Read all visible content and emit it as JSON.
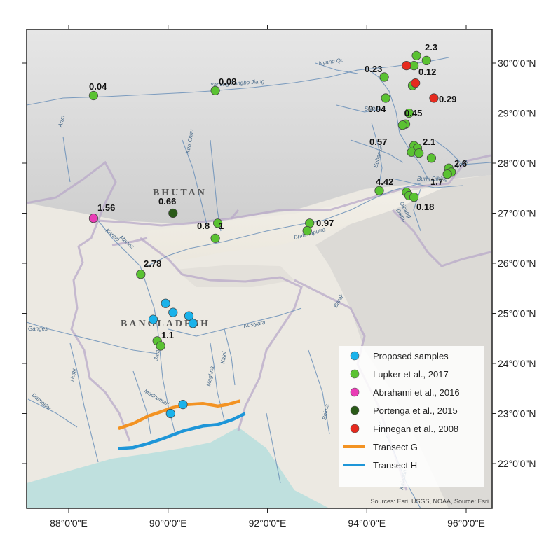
{
  "map": {
    "x_ticks": [
      "88°0'0\"E",
      "90°0'0\"E",
      "92°0'0\"E",
      "94°0'0\"E",
      "96°0'0\"E"
    ],
    "y_ticks": [
      "30°0'0\"N",
      "29°0'0\"N",
      "28°0'0\"N",
      "27°0'0\"N",
      "26°0'0\"N",
      "25°0'0\"N",
      "24°0'0\"N",
      "23°0'0\"N",
      "22°0'0\"N"
    ],
    "countries": [
      "BHUTAN",
      "BANGLADESH"
    ],
    "rivers": [
      "Nyang Qu",
      "Yarlung Zangbo Jiang",
      "Siyom",
      "Subansiri",
      "Lohit",
      "Burhi Dihing",
      "Dibang",
      "Arun",
      "Kuri Chhu",
      "Manas",
      "Brahmaputra",
      "Dikhu",
      "Barak",
      "Kusiyara",
      "Kalni",
      "Meghna",
      "Ganges",
      "Jamuna",
      "Madhumati",
      "Hugli",
      "Damodar",
      "Kaladan",
      "Bhima",
      "Karato"
    ],
    "value_labels": [
      "2.3",
      "0.23",
      "0.12",
      "0.04",
      "0.08",
      "0.04",
      "0.29",
      "0.45",
      "0.57",
      "2.1",
      "2.6",
      "4.42",
      "1.7",
      "0.18",
      "1.56",
      "0.66",
      "0.8",
      "1",
      "0.97",
      "2.78",
      "1.1"
    ],
    "attribution": "Sources: Esri, USGS, NOAA, Source: Esri"
  },
  "legend": {
    "items": [
      {
        "label": "Proposed samples",
        "color": "#1ab2ea",
        "symbol": "circle"
      },
      {
        "label": "Lupker et al., 2017",
        "color": "#5ac232",
        "symbol": "circle"
      },
      {
        "label": "Abrahami et al., 2016",
        "color": "#e93db5",
        "symbol": "circle"
      },
      {
        "label": "Portenga et al., 2015",
        "color": "#2a5a18",
        "symbol": "circle"
      },
      {
        "label": "Finnegan et al., 2008",
        "color": "#e62a1e",
        "symbol": "circle"
      },
      {
        "label": "Transect G",
        "color": "#f39323",
        "symbol": "line"
      },
      {
        "label": "Transect H",
        "color": "#1e96d8",
        "symbol": "line"
      }
    ]
  },
  "points": [
    {
      "dataset": "Lupker et al., 2017",
      "lon": 88.5,
      "lat": 29.35
    },
    {
      "dataset": "Lupker et al., 2017",
      "lon": 90.95,
      "lat": 29.45
    },
    {
      "dataset": "Lupker et al., 2017",
      "lon": 95.0,
      "lat": 30.15
    },
    {
      "dataset": "Lupker et al., 2017",
      "lon": 95.2,
      "lat": 30.05
    },
    {
      "dataset": "Lupker et al., 2017",
      "lon": 94.95,
      "lat": 29.95
    },
    {
      "dataset": "Lupker et al., 2017",
      "lon": 94.35,
      "lat": 29.72
    },
    {
      "dataset": "Lupker et al., 2017",
      "lon": 94.92,
      "lat": 29.55
    },
    {
      "dataset": "Lupker et al., 2017",
      "lon": 94.38,
      "lat": 29.3
    },
    {
      "dataset": "Lupker et al., 2017",
      "lon": 94.85,
      "lat": 29.0
    },
    {
      "dataset": "Lupker et al., 2017",
      "lon": 94.78,
      "lat": 28.78
    },
    {
      "dataset": "Lupker et al., 2017",
      "lon": 94.72,
      "lat": 28.76
    },
    {
      "dataset": "Lupker et al., 2017",
      "lon": 94.95,
      "lat": 28.35
    },
    {
      "dataset": "Lupker et al., 2017",
      "lon": 95.02,
      "lat": 28.3
    },
    {
      "dataset": "Lupker et al., 2017",
      "lon": 94.9,
      "lat": 28.22
    },
    {
      "dataset": "Lupker et al., 2017",
      "lon": 95.05,
      "lat": 28.2
    },
    {
      "dataset": "Lupker et al., 2017",
      "lon": 95.3,
      "lat": 28.1
    },
    {
      "dataset": "Lupker et al., 2017",
      "lon": 95.65,
      "lat": 27.9
    },
    {
      "dataset": "Lupker et al., 2017",
      "lon": 95.7,
      "lat": 27.82
    },
    {
      "dataset": "Lupker et al., 2017",
      "lon": 95.62,
      "lat": 27.78
    },
    {
      "dataset": "Lupker et al., 2017",
      "lon": 94.25,
      "lat": 27.45
    },
    {
      "dataset": "Lupker et al., 2017",
      "lon": 94.8,
      "lat": 27.42
    },
    {
      "dataset": "Lupker et al., 2017",
      "lon": 94.85,
      "lat": 27.35
    },
    {
      "dataset": "Lupker et al., 2017",
      "lon": 94.95,
      "lat": 27.32
    },
    {
      "dataset": "Lupker et al., 2017",
      "lon": 91.0,
      "lat": 26.8
    },
    {
      "dataset": "Lupker et al., 2017",
      "lon": 90.95,
      "lat": 26.5
    },
    {
      "dataset": "Lupker et al., 2017",
      "lon": 92.85,
      "lat": 26.8
    },
    {
      "dataset": "Lupker et al., 2017",
      "lon": 92.8,
      "lat": 26.65
    },
    {
      "dataset": "Lupker et al., 2017",
      "lon": 89.45,
      "lat": 25.78
    },
    {
      "dataset": "Lupker et al., 2017",
      "lon": 89.78,
      "lat": 24.45
    },
    {
      "dataset": "Lupker et al., 2017",
      "lon": 89.85,
      "lat": 24.35
    },
    {
      "dataset": "Abrahami et al., 2016",
      "lon": 88.5,
      "lat": 26.9
    },
    {
      "dataset": "Portenga et al., 2015",
      "lon": 90.1,
      "lat": 27.0
    },
    {
      "dataset": "Finnegan et al., 2008",
      "lon": 94.8,
      "lat": 29.95
    },
    {
      "dataset": "Finnegan et al., 2008",
      "lon": 94.98,
      "lat": 29.6
    },
    {
      "dataset": "Finnegan et al., 2008",
      "lon": 95.35,
      "lat": 29.3
    },
    {
      "dataset": "Proposed samples",
      "lon": 89.95,
      "lat": 25.2
    },
    {
      "dataset": "Proposed samples",
      "lon": 90.1,
      "lat": 25.02
    },
    {
      "dataset": "Proposed samples",
      "lon": 89.7,
      "lat": 24.88
    },
    {
      "dataset": "Proposed samples",
      "lon": 90.42,
      "lat": 24.95
    },
    {
      "dataset": "Proposed samples",
      "lon": 90.5,
      "lat": 24.8
    },
    {
      "dataset": "Proposed samples",
      "lon": 90.3,
      "lat": 23.18
    },
    {
      "dataset": "Proposed samples",
      "lon": 90.05,
      "lat": 23.0
    }
  ],
  "transects": {
    "G": [
      [
        89.0,
        22.7
      ],
      [
        89.3,
        22.8
      ],
      [
        89.6,
        22.95
      ],
      [
        89.9,
        23.05
      ],
      [
        90.1,
        23.12
      ],
      [
        90.4,
        23.18
      ],
      [
        90.7,
        23.2
      ],
      [
        91.0,
        23.15
      ],
      [
        91.2,
        23.18
      ],
      [
        91.45,
        23.25
      ]
    ],
    "H": [
      [
        89.0,
        22.3
      ],
      [
        89.3,
        22.32
      ],
      [
        89.6,
        22.4
      ],
      [
        89.9,
        22.5
      ],
      [
        90.3,
        22.65
      ],
      [
        90.7,
        22.75
      ],
      [
        91.0,
        22.78
      ],
      [
        91.3,
        22.88
      ],
      [
        91.55,
        23.0
      ]
    ]
  }
}
